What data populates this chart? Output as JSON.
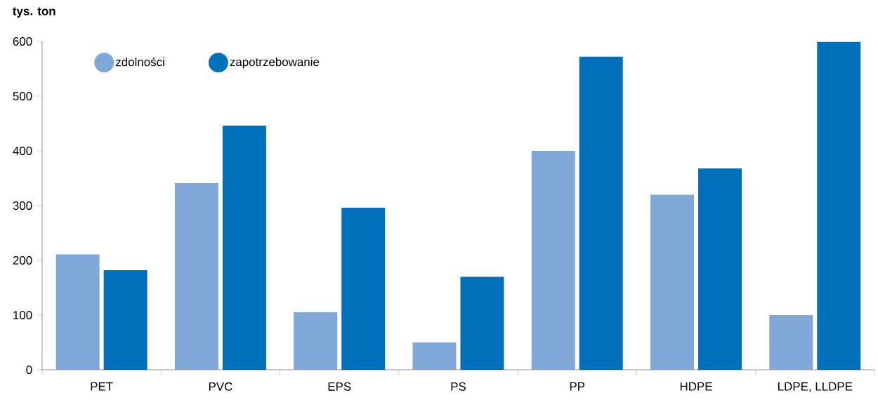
{
  "chart_data": {
    "type": "bar",
    "ylabel": "tys. ton",
    "categories": [
      "PET",
      "PVC",
      "EPS",
      "PS",
      "PP",
      "HDPE",
      "LDPE, LLDPE"
    ],
    "series": [
      {
        "name": "zdolności",
        "color": "#7fa7d8",
        "values": [
          211,
          341,
          105,
          50,
          400,
          320,
          100
        ]
      },
      {
        "name": "zapotrzebowanie",
        "color": "#0070bb",
        "values": [
          182,
          446,
          296,
          170,
          572,
          368,
          599
        ]
      }
    ],
    "ylim": [
      0,
      600
    ],
    "yticks": [
      0,
      100,
      200,
      300,
      400,
      500,
      600
    ],
    "legend": "top left"
  }
}
